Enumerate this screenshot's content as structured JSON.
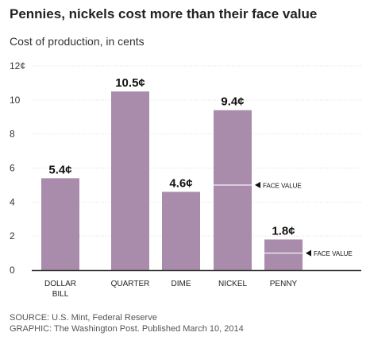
{
  "title": "Pennies, nickels cost more than their face value",
  "subtitle": "Cost of production, in cents",
  "source_line": "SOURCE: U.S. Mint, Federal Reserve",
  "graphic_line": "GRAPHIC: The Washington Post. Published March 10, 2014",
  "colors": {
    "bar": "#a98cac",
    "face_line": "#ffffff",
    "axis": "#333333",
    "grid": "#dddddd"
  },
  "chart_data": {
    "type": "bar",
    "categories": [
      "DOLLAR BILL",
      "QUARTER",
      "DIME",
      "NICKEL",
      "PENNY"
    ],
    "category_lines": [
      [
        "DOLLAR",
        "BILL"
      ],
      [
        "QUARTER"
      ],
      [
        "DIME"
      ],
      [
        "NICKEL"
      ],
      [
        "PENNY"
      ]
    ],
    "values": [
      5.4,
      10.5,
      4.6,
      9.4,
      1.8
    ],
    "value_labels": [
      "5.4¢",
      "10.5¢",
      "4.6¢",
      "9.4¢",
      "1.8¢"
    ],
    "yticks": [
      0,
      2,
      4,
      6,
      8,
      10,
      12
    ],
    "ytick_labels": [
      "0",
      "2",
      "4",
      "6",
      "8",
      "10",
      "12¢"
    ],
    "ylim": [
      0,
      12
    ],
    "face_values": [
      {
        "category": "NICKEL",
        "value": 5,
        "label": "FACE VALUE"
      },
      {
        "category": "PENNY",
        "value": 1,
        "label": "FACE VALUE"
      }
    ]
  }
}
